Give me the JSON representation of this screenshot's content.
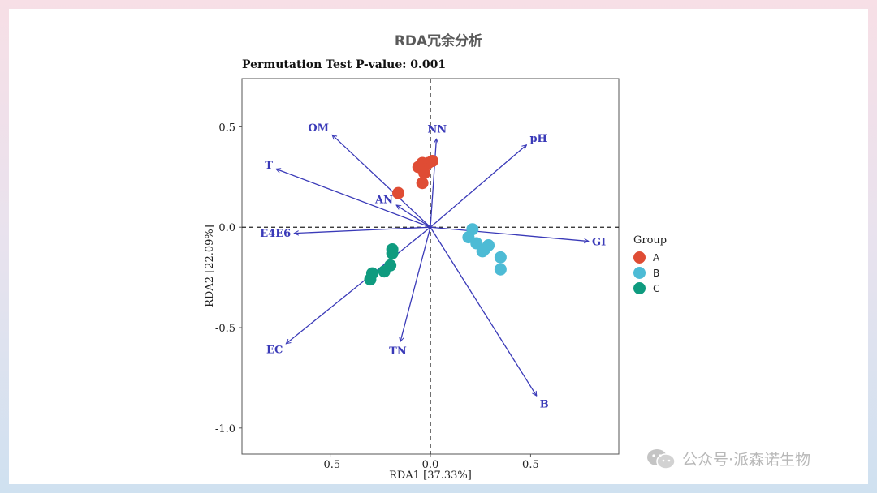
{
  "page_title": "RDA冗余分析",
  "subtitle": "Permutation Test P-value: 0.001",
  "watermark": "公众号·派森诺生物",
  "chart_data": {
    "type": "scatter",
    "xlabel": "RDA1 [37.33%]",
    "ylabel": "RDA2 [22.09%]",
    "xlim": [
      -0.94,
      0.94
    ],
    "ylim": [
      -1.13,
      0.74
    ],
    "xticks": [
      -0.5,
      0.0,
      0.5
    ],
    "yticks": [
      0.5,
      0.0,
      -0.5,
      -1.0
    ],
    "reference_lines": {
      "x": 0,
      "y": 0,
      "style": "dashed"
    },
    "arrow_color": "#3a3ab8",
    "arrows": [
      {
        "name": "OM",
        "x": -0.49,
        "y": 0.46
      },
      {
        "name": "NN",
        "x": 0.03,
        "y": 0.44
      },
      {
        "name": "pH",
        "x": 0.48,
        "y": 0.41
      },
      {
        "name": "T",
        "x": -0.77,
        "y": 0.29
      },
      {
        "name": "AN",
        "x": -0.17,
        "y": 0.11
      },
      {
        "name": "E4E6",
        "x": -0.68,
        "y": -0.03
      },
      {
        "name": "GI",
        "x": 0.79,
        "y": -0.07
      },
      {
        "name": "EC",
        "x": -0.72,
        "y": -0.58
      },
      {
        "name": "TN",
        "x": -0.15,
        "y": -0.57
      },
      {
        "name": "B",
        "x": 0.53,
        "y": -0.84
      }
    ],
    "legend_title": "Group",
    "legend_position": "right",
    "series": [
      {
        "name": "A",
        "color": "#df4c34",
        "points": [
          [
            -0.16,
            0.17
          ],
          [
            -0.04,
            0.32
          ],
          [
            -0.01,
            0.32
          ],
          [
            -0.06,
            0.3
          ],
          [
            0.01,
            0.33
          ],
          [
            -0.03,
            0.27
          ],
          [
            -0.04,
            0.22
          ]
        ]
      },
      {
        "name": "B",
        "color": "#4dbbd5",
        "points": [
          [
            0.21,
            -0.01
          ],
          [
            0.19,
            -0.05
          ],
          [
            0.23,
            -0.08
          ],
          [
            0.29,
            -0.09
          ],
          [
            0.27,
            -0.11
          ],
          [
            0.26,
            -0.12
          ],
          [
            0.35,
            -0.15
          ],
          [
            0.35,
            -0.21
          ]
        ]
      },
      {
        "name": "C",
        "color": "#0f9b7f",
        "points": [
          [
            -0.19,
            -0.11
          ],
          [
            -0.19,
            -0.13
          ],
          [
            -0.2,
            -0.19
          ],
          [
            -0.23,
            -0.22
          ],
          [
            -0.29,
            -0.23
          ],
          [
            -0.3,
            -0.26
          ]
        ]
      }
    ]
  }
}
